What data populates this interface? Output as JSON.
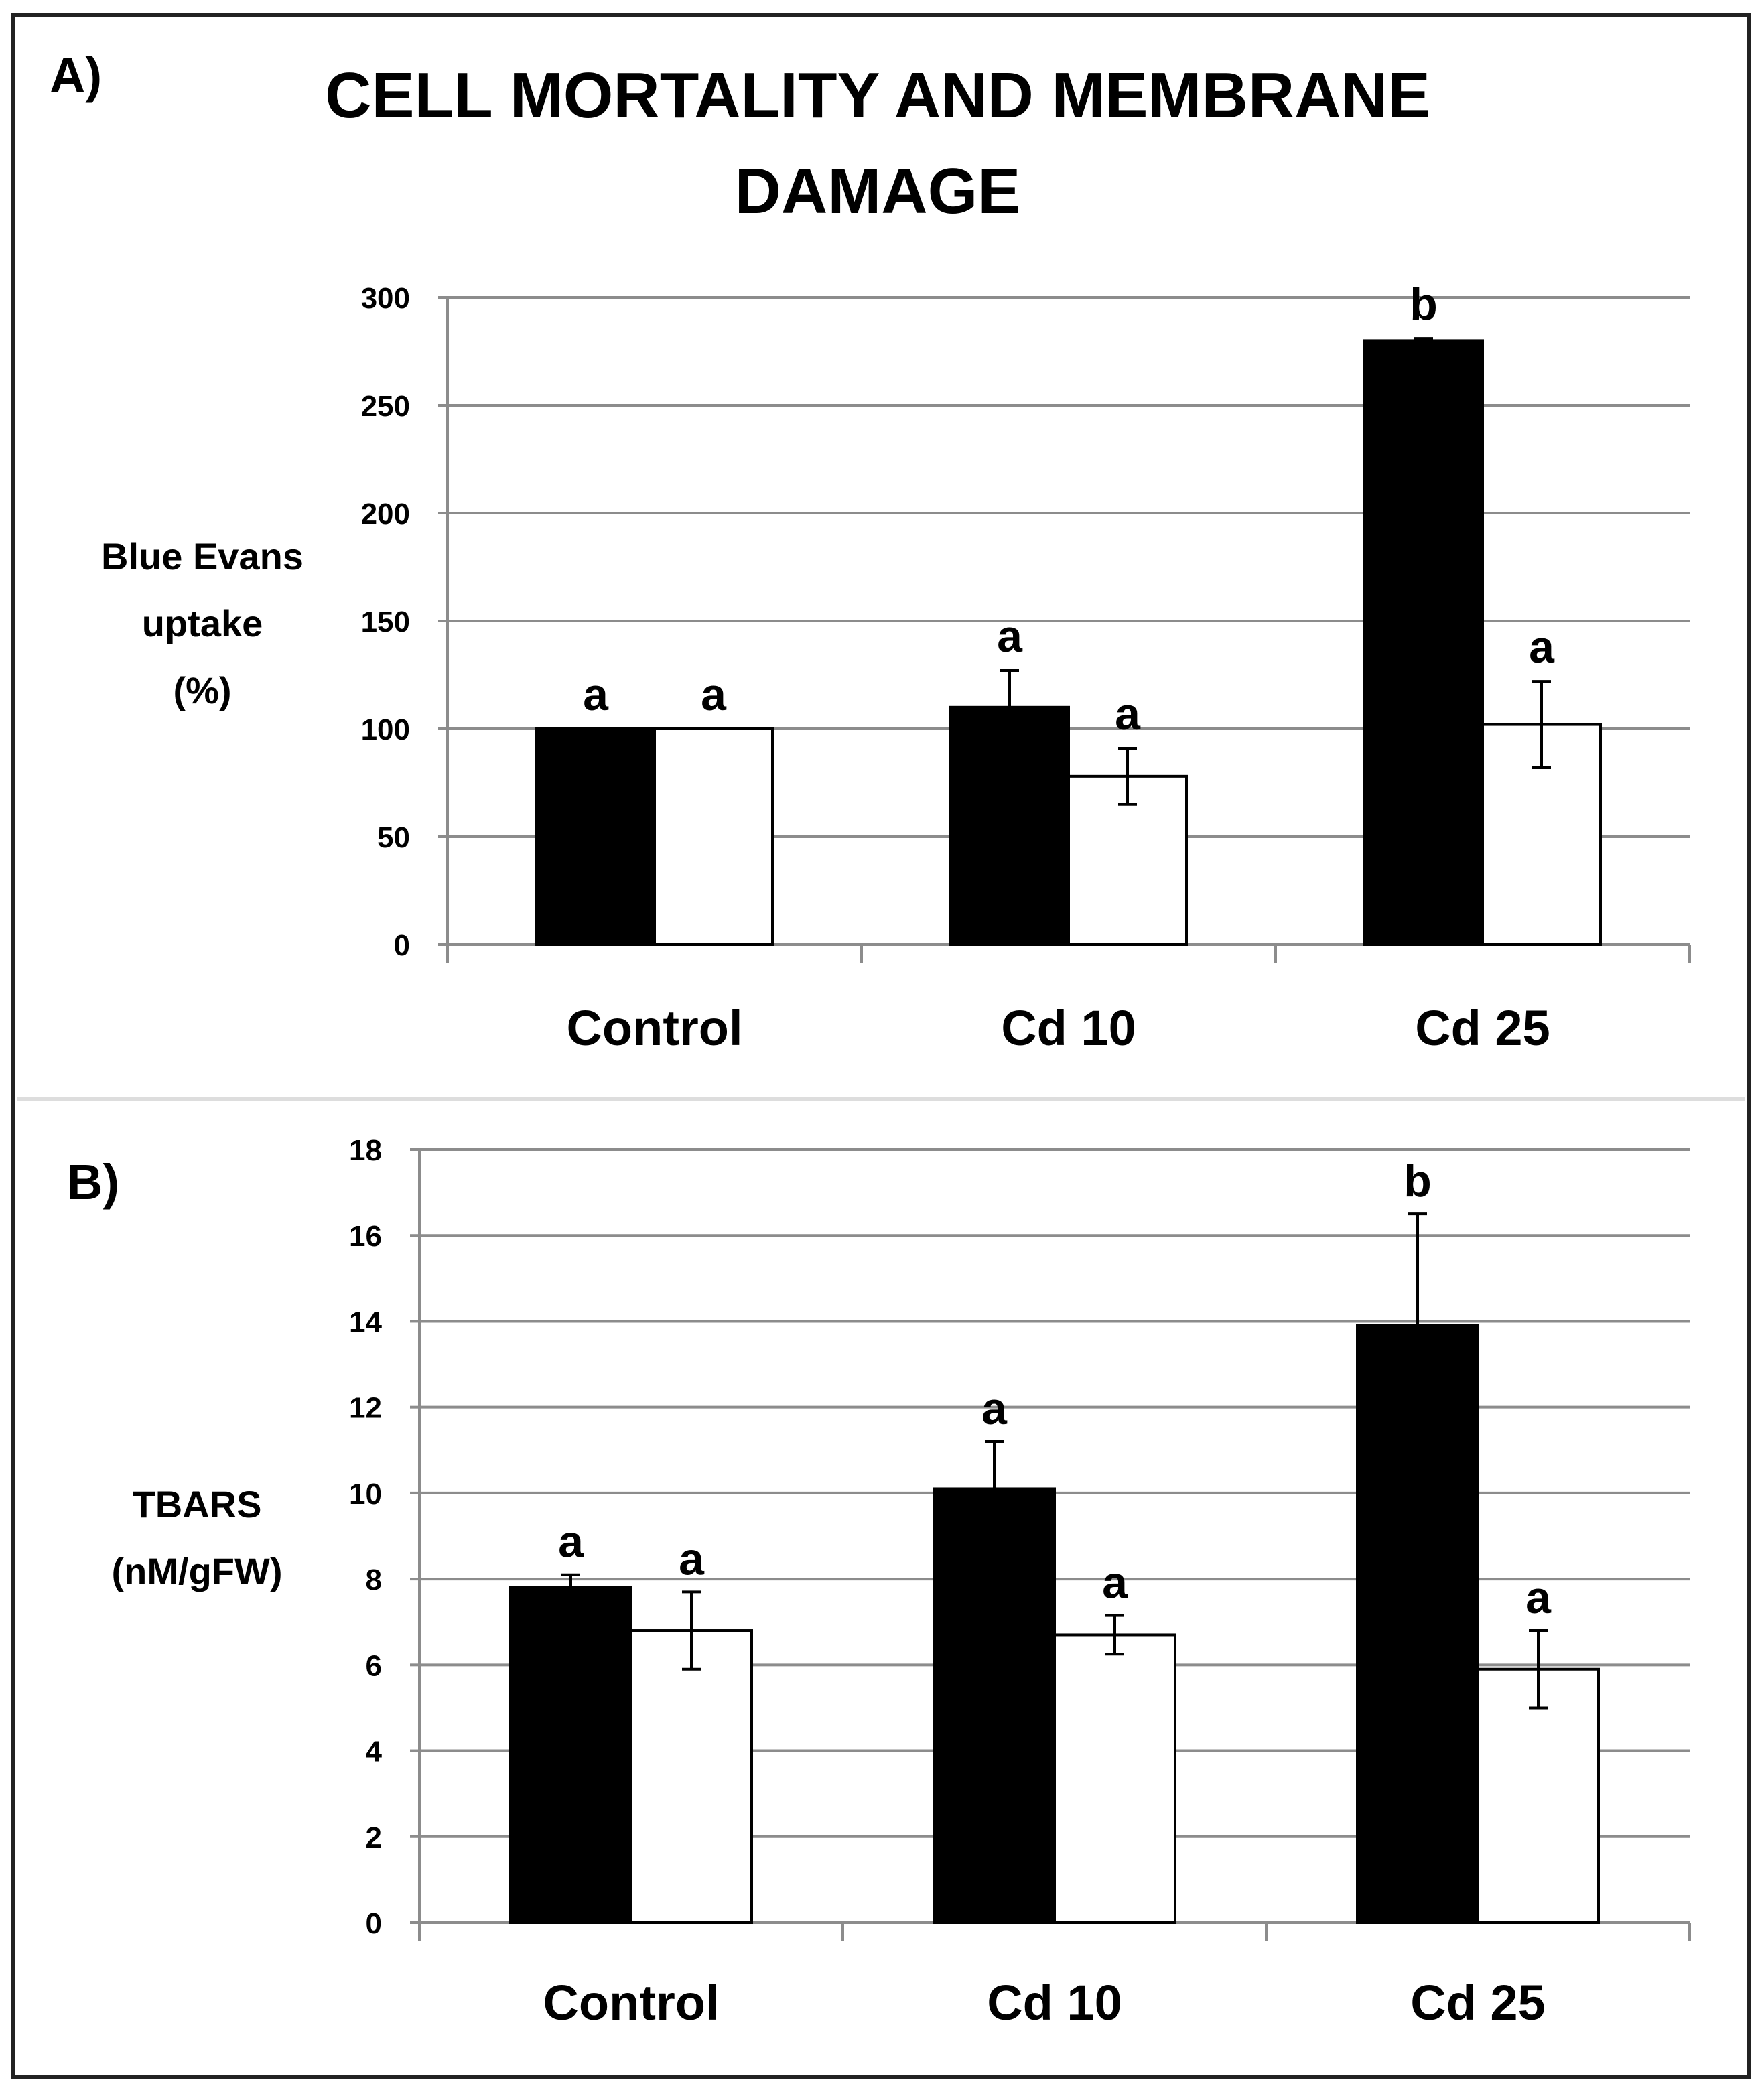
{
  "chart_data": [
    {
      "type": "bar",
      "panel_label": "A)",
      "title_lines": [
        "CELL MORTALITY AND MEMBRANE",
        "DAMAGE"
      ],
      "ylabel_lines": [
        "Blue Evans",
        "uptake",
        "(%)"
      ],
      "xlabel": "",
      "categories": [
        "Control",
        "Cd 10",
        "Cd 25"
      ],
      "ylim": [
        0,
        300
      ],
      "yticks": [
        0,
        50,
        100,
        150,
        200,
        250,
        300
      ],
      "grid": true,
      "series": [
        {
          "name": "series-black",
          "color": "#000000",
          "values": [
            100,
            110,
            280
          ],
          "errors": [
            0,
            17,
            1
          ],
          "letters": [
            "a",
            "a",
            "b"
          ]
        },
        {
          "name": "series-white",
          "color": "#ffffff",
          "values": [
            100,
            78,
            102
          ],
          "errors": [
            0,
            13,
            20
          ],
          "letters": [
            "a",
            "a",
            "a"
          ]
        }
      ]
    },
    {
      "type": "bar",
      "panel_label": "B)",
      "title_lines": [],
      "ylabel_lines": [
        "TBARS",
        "(nM/gFW)"
      ],
      "xlabel": "",
      "categories": [
        "Control",
        "Cd 10",
        "Cd 25"
      ],
      "ylim": [
        0,
        18
      ],
      "yticks": [
        0,
        2,
        4,
        6,
        8,
        10,
        12,
        14,
        16,
        18
      ],
      "grid": true,
      "series": [
        {
          "name": "series-black",
          "color": "#000000",
          "values": [
            7.8,
            10.1,
            13.9
          ],
          "errors": [
            0.3,
            1.1,
            2.6
          ],
          "letters": [
            "a",
            "a",
            "b"
          ]
        },
        {
          "name": "series-white",
          "color": "#ffffff",
          "values": [
            6.8,
            6.7,
            5.9
          ],
          "errors": [
            0.9,
            0.45,
            0.9
          ],
          "letters": [
            "a",
            "a",
            "a"
          ]
        }
      ]
    }
  ]
}
